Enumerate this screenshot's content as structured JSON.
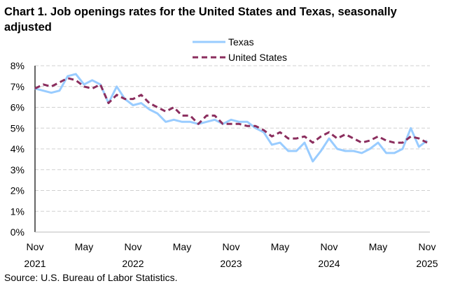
{
  "chart_data": {
    "type": "line",
    "title": "Chart 1. Job openings rates for the United States and Texas, seasonally adjusted",
    "source": "Source: U.S. Bureau of Labor Statistics.",
    "xlabel": "",
    "ylabel": "",
    "ylim": [
      0,
      8
    ],
    "y_ticks": [
      "0%",
      "1%",
      "2%",
      "3%",
      "4%",
      "5%",
      "6%",
      "7%",
      "8%"
    ],
    "x_ticks": [
      {
        "month": "Nov",
        "year": "2021",
        "index": 0
      },
      {
        "month": "May",
        "year": "",
        "index": 6
      },
      {
        "month": "Nov",
        "year": "2022",
        "index": 12
      },
      {
        "month": "May",
        "year": "",
        "index": 18
      },
      {
        "month": "Nov",
        "year": "2023",
        "index": 24
      },
      {
        "month": "May",
        "year": "",
        "index": 30
      },
      {
        "month": "Nov",
        "year": "2024",
        "index": 36
      },
      {
        "month": "May",
        "year": "",
        "index": 42
      },
      {
        "month": "Nov",
        "year": "2025",
        "index": 48
      }
    ],
    "x_range": [
      "Nov 2021",
      "Nov 2025"
    ],
    "grid": "horizontal dashed",
    "legend_position": "top-center",
    "series": [
      {
        "name": "Texas",
        "color": "#99ccff",
        "style": "solid",
        "values": [
          6.9,
          6.8,
          6.7,
          6.8,
          7.5,
          7.6,
          7.1,
          7.3,
          7.1,
          6.2,
          7.0,
          6.4,
          6.1,
          6.2,
          5.9,
          5.7,
          5.3,
          5.4,
          5.3,
          5.3,
          5.2,
          5.3,
          5.4,
          5.2,
          5.4,
          5.3,
          5.3,
          5.0,
          4.8,
          4.2,
          4.3,
          3.9,
          3.9,
          4.3,
          3.4,
          3.9,
          4.5,
          4.0,
          3.9,
          3.9,
          3.8,
          4.0,
          4.3,
          3.8,
          3.8,
          4.0,
          5.0,
          4.1,
          4.4
        ]
      },
      {
        "name": "United States",
        "color": "#8b2e5e",
        "style": "dashed",
        "values": [
          6.9,
          7.1,
          7.0,
          7.2,
          7.4,
          7.3,
          7.0,
          6.9,
          7.1,
          6.2,
          6.6,
          6.4,
          6.4,
          6.6,
          6.2,
          6.0,
          5.8,
          6.0,
          5.6,
          5.6,
          5.2,
          5.6,
          5.6,
          5.2,
          5.2,
          5.2,
          5.1,
          5.1,
          4.9,
          4.6,
          4.8,
          4.5,
          4.5,
          4.6,
          4.3,
          4.6,
          4.8,
          4.5,
          4.7,
          4.5,
          4.3,
          4.4,
          4.6,
          4.4,
          4.3,
          4.3,
          4.6,
          4.5,
          4.3
        ]
      }
    ]
  }
}
